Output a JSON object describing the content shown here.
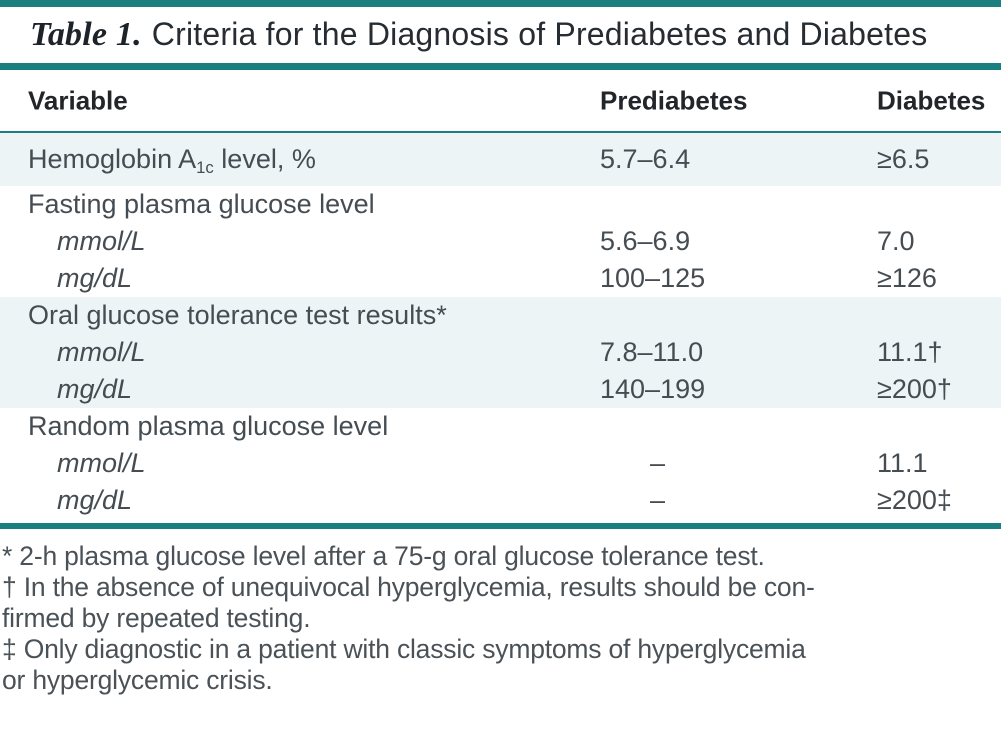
{
  "colors": {
    "accent_teal": "#1b7f80",
    "row_shading": "#ecf4f6",
    "title_text": "#262c31",
    "body_text": "#454d53"
  },
  "table": {
    "label": "Table 1.",
    "title": "Criteria for the Diagnosis of Prediabetes and Diabetes",
    "columns": [
      "Variable",
      "Prediabetes",
      "Diabetes"
    ],
    "rows": [
      {
        "variable": "Hemoglobin A",
        "variable_sub": "1c",
        "variable_rest": " level, %",
        "prediabetes": "5.7–6.4",
        "diabetes": "≥6.5",
        "shaded": true,
        "indent": false,
        "italic": false,
        "tall": true
      },
      {
        "variable": "Fasting plasma glucose level",
        "prediabetes": "",
        "diabetes": "",
        "shaded": false,
        "indent": false,
        "italic": false,
        "tall": false
      },
      {
        "variable": "mmol/L",
        "prediabetes": "5.6–6.9",
        "diabetes": "7.0",
        "shaded": false,
        "indent": true,
        "italic": true,
        "tall": false
      },
      {
        "variable": "mg/dL",
        "prediabetes": "100–125",
        "diabetes": "≥126",
        "shaded": false,
        "indent": true,
        "italic": true,
        "tall": false
      },
      {
        "variable": "Oral glucose tolerance test results*",
        "prediabetes": "",
        "diabetes": "",
        "shaded": true,
        "indent": false,
        "italic": false,
        "tall": false
      },
      {
        "variable": "mmol/L",
        "prediabetes": "7.8–11.0",
        "diabetes": "11.1†",
        "shaded": true,
        "indent": true,
        "italic": true,
        "tall": false
      },
      {
        "variable": "mg/dL",
        "prediabetes": "140–199",
        "diabetes": "≥200†",
        "shaded": true,
        "indent": true,
        "italic": true,
        "tall": false
      },
      {
        "variable": "Random plasma glucose level",
        "prediabetes": "",
        "diabetes": "",
        "shaded": false,
        "indent": false,
        "italic": false,
        "tall": false
      },
      {
        "variable": "mmol/L",
        "prediabetes": "–",
        "diabetes": "11.1",
        "shaded": false,
        "indent": true,
        "italic": true,
        "tall": false
      },
      {
        "variable": "mg/dL",
        "prediabetes": "–",
        "diabetes": "≥200‡",
        "shaded": false,
        "indent": true,
        "italic": true,
        "tall": false
      }
    ],
    "footnote_lines": [
      "* 2-h plasma glucose level after a 75-g oral glucose tolerance test.",
      "† In the absence of unequivocal hyperglycemia, results should be con-",
      "firmed by repeated testing.",
      "‡ Only diagnostic in a patient with classic symptoms of hyperglycemia",
      "or hyperglycemic crisis."
    ]
  }
}
